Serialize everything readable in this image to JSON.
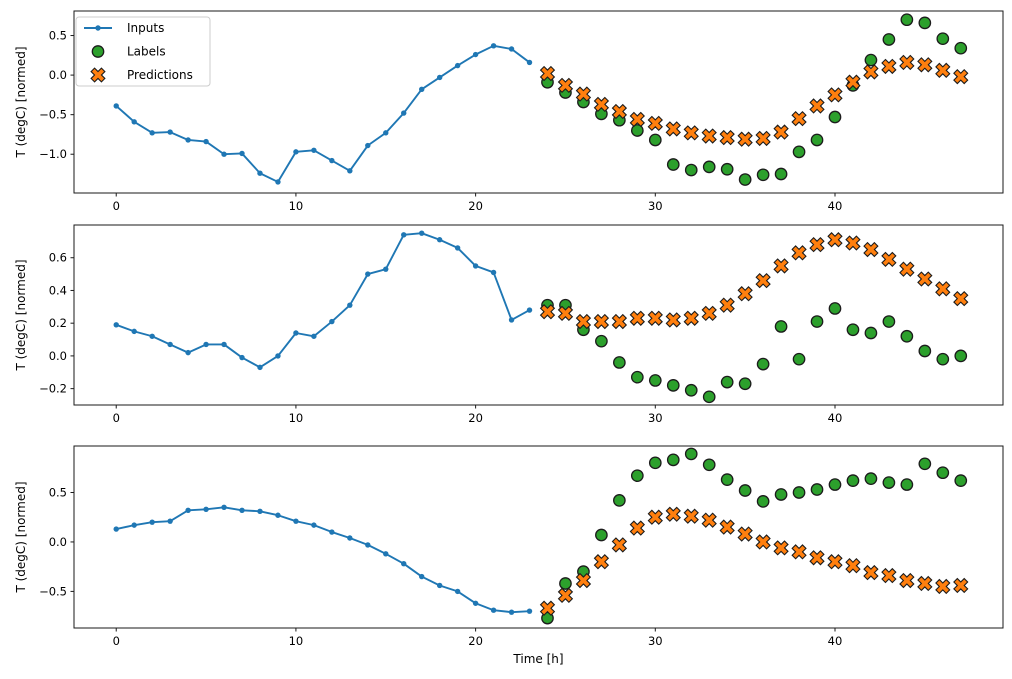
{
  "figure": {
    "background": "#ffffff",
    "colors": {
      "inputs": "#1f77b4",
      "labels": "#2ca02c",
      "predictions": "#ff7f0e",
      "marker_edge": "#1c1c1c",
      "spine": "#1a1a1a",
      "legend_border": "#cccccc"
    },
    "legend": {
      "entries": [
        "Inputs",
        "Labels",
        "Predictions"
      ]
    }
  },
  "chart_data": [
    {
      "type": "line",
      "title": "",
      "xlabel": "",
      "ylabel": "T (degC) [normed]",
      "xlim": [
        -2.35,
        49.35
      ],
      "ylim": [
        -1.49,
        0.81
      ],
      "grid": false,
      "legend": {
        "show": true,
        "position": "upper-left"
      },
      "xticks": {
        "values": [
          0,
          10,
          20,
          30,
          40
        ],
        "labels": [
          "0",
          "10",
          "20",
          "30",
          "40"
        ]
      },
      "yticks": {
        "values": [
          0.5,
          0.0,
          -0.5,
          -1.0
        ],
        "labels": [
          "0.5",
          "0.0",
          "−0.5",
          "−1.0"
        ]
      },
      "series": [
        {
          "name": "Inputs",
          "kind": "line",
          "marker": "dot",
          "color": "#1f77b4",
          "x": [
            0,
            1,
            2,
            3,
            4,
            5,
            6,
            7,
            8,
            9,
            10,
            11,
            12,
            13,
            14,
            15,
            16,
            17,
            18,
            19,
            20,
            21,
            22,
            23
          ],
          "values": [
            -0.39,
            -0.59,
            -0.73,
            -0.72,
            -0.82,
            -0.84,
            -1.0,
            -0.99,
            -1.24,
            -1.35,
            -0.97,
            -0.95,
            -1.08,
            -1.21,
            -0.89,
            -0.73,
            -0.48,
            -0.18,
            -0.03,
            0.12,
            0.26,
            0.37,
            0.33,
            0.16
          ]
        },
        {
          "name": "Labels",
          "kind": "scatter",
          "marker": "circle",
          "color": "#2ca02c",
          "x": [
            24,
            25,
            26,
            27,
            28,
            29,
            30,
            31,
            32,
            33,
            34,
            35,
            36,
            37,
            38,
            39,
            40,
            41,
            42,
            43,
            44,
            45,
            46,
            47
          ],
          "values": [
            -0.09,
            -0.22,
            -0.34,
            -0.49,
            -0.57,
            -0.7,
            -0.82,
            -1.13,
            -1.2,
            -1.16,
            -1.19,
            -1.32,
            -1.26,
            -1.25,
            -0.97,
            -0.82,
            -0.53,
            -0.13,
            0.19,
            0.45,
            0.7,
            0.66,
            0.46,
            0.34
          ]
        },
        {
          "name": "Predictions",
          "kind": "scatter",
          "marker": "X",
          "color": "#ff7f0e",
          "x": [
            24,
            25,
            26,
            27,
            28,
            29,
            30,
            31,
            32,
            33,
            34,
            35,
            36,
            37,
            38,
            39,
            40,
            41,
            42,
            43,
            44,
            45,
            46,
            47
          ],
          "values": [
            0.02,
            -0.13,
            -0.24,
            -0.37,
            -0.46,
            -0.56,
            -0.61,
            -0.68,
            -0.73,
            -0.77,
            -0.79,
            -0.81,
            -0.8,
            -0.72,
            -0.55,
            -0.39,
            -0.25,
            -0.09,
            0.04,
            0.11,
            0.16,
            0.13,
            0.06,
            -0.02
          ]
        }
      ]
    },
    {
      "type": "line",
      "title": "",
      "xlabel": "",
      "ylabel": "T (degC) [normed]",
      "xlim": [
        -2.35,
        49.35
      ],
      "ylim": [
        -0.3,
        0.8
      ],
      "grid": false,
      "legend": {
        "show": false
      },
      "xticks": {
        "values": [
          0,
          10,
          20,
          30,
          40
        ],
        "labels": [
          "0",
          "10",
          "20",
          "30",
          "40"
        ]
      },
      "yticks": {
        "values": [
          0.6,
          0.4,
          0.2,
          0.0,
          -0.2
        ],
        "labels": [
          "0.6",
          "0.4",
          "0.2",
          "0.0",
          "−0.2"
        ]
      },
      "series": [
        {
          "name": "Inputs",
          "kind": "line",
          "marker": "dot",
          "color": "#1f77b4",
          "x": [
            0,
            1,
            2,
            3,
            4,
            5,
            6,
            7,
            8,
            9,
            10,
            11,
            12,
            13,
            14,
            15,
            16,
            17,
            18,
            19,
            20,
            21,
            22,
            23
          ],
          "values": [
            0.19,
            0.15,
            0.12,
            0.07,
            0.02,
            0.07,
            0.07,
            -0.01,
            -0.07,
            0.0,
            0.14,
            0.12,
            0.21,
            0.31,
            0.5,
            0.53,
            0.74,
            0.75,
            0.71,
            0.66,
            0.55,
            0.51,
            0.22,
            0.28
          ]
        },
        {
          "name": "Labels",
          "kind": "scatter",
          "marker": "circle",
          "color": "#2ca02c",
          "x": [
            24,
            25,
            26,
            27,
            28,
            29,
            30,
            31,
            32,
            33,
            34,
            35,
            36,
            37,
            38,
            39,
            40,
            41,
            42,
            43,
            44,
            45,
            46,
            47
          ],
          "values": [
            0.31,
            0.31,
            0.16,
            0.09,
            -0.04,
            -0.13,
            -0.15,
            -0.18,
            -0.21,
            -0.25,
            -0.16,
            -0.17,
            -0.05,
            0.18,
            -0.02,
            0.21,
            0.29,
            0.16,
            0.14,
            0.21,
            0.12,
            0.03,
            -0.02,
            0.0
          ]
        },
        {
          "name": "Predictions",
          "kind": "scatter",
          "marker": "X",
          "color": "#ff7f0e",
          "x": [
            24,
            25,
            26,
            27,
            28,
            29,
            30,
            31,
            32,
            33,
            34,
            35,
            36,
            37,
            38,
            39,
            40,
            41,
            42,
            43,
            44,
            45,
            46,
            47
          ],
          "values": [
            0.27,
            0.26,
            0.21,
            0.21,
            0.21,
            0.23,
            0.23,
            0.22,
            0.23,
            0.26,
            0.31,
            0.38,
            0.46,
            0.55,
            0.63,
            0.68,
            0.71,
            0.69,
            0.65,
            0.59,
            0.53,
            0.47,
            0.41,
            0.35
          ]
        }
      ]
    },
    {
      "type": "line",
      "title": "",
      "xlabel": "Time [h]",
      "ylabel": "T (degC) [normed]",
      "xlim": [
        -2.35,
        49.35
      ],
      "ylim": [
        -0.87,
        0.97
      ],
      "grid": false,
      "legend": {
        "show": false
      },
      "xticks": {
        "values": [
          0,
          10,
          20,
          30,
          40
        ],
        "labels": [
          "0",
          "10",
          "20",
          "30",
          "40"
        ]
      },
      "yticks": {
        "values": [
          0.5,
          0.0,
          -0.5
        ],
        "labels": [
          "0.5",
          "0.0",
          "−0.5"
        ]
      },
      "series": [
        {
          "name": "Inputs",
          "kind": "line",
          "marker": "dot",
          "color": "#1f77b4",
          "x": [
            0,
            1,
            2,
            3,
            4,
            5,
            6,
            7,
            8,
            9,
            10,
            11,
            12,
            13,
            14,
            15,
            16,
            17,
            18,
            19,
            20,
            21,
            22,
            23
          ],
          "values": [
            0.13,
            0.17,
            0.2,
            0.21,
            0.32,
            0.33,
            0.35,
            0.32,
            0.31,
            0.27,
            0.21,
            0.17,
            0.1,
            0.04,
            -0.03,
            -0.12,
            -0.22,
            -0.35,
            -0.44,
            -0.5,
            -0.62,
            -0.69,
            -0.71,
            -0.7
          ]
        },
        {
          "name": "Labels",
          "kind": "scatter",
          "marker": "circle",
          "color": "#2ca02c",
          "x": [
            24,
            25,
            26,
            27,
            28,
            29,
            30,
            31,
            32,
            33,
            34,
            35,
            36,
            37,
            38,
            39,
            40,
            41,
            42,
            43,
            44,
            45,
            46,
            47
          ],
          "values": [
            -0.77,
            -0.42,
            -0.3,
            0.07,
            0.42,
            0.67,
            0.8,
            0.83,
            0.89,
            0.78,
            0.63,
            0.52,
            0.41,
            0.48,
            0.5,
            0.53,
            0.58,
            0.62,
            0.64,
            0.6,
            0.58,
            0.79,
            0.7,
            0.62
          ]
        },
        {
          "name": "Predictions",
          "kind": "scatter",
          "marker": "X",
          "color": "#ff7f0e",
          "x": [
            24,
            25,
            26,
            27,
            28,
            29,
            30,
            31,
            32,
            33,
            34,
            35,
            36,
            37,
            38,
            39,
            40,
            41,
            42,
            43,
            44,
            45,
            46,
            47
          ],
          "values": [
            -0.67,
            -0.54,
            -0.39,
            -0.2,
            -0.03,
            0.14,
            0.25,
            0.28,
            0.26,
            0.22,
            0.15,
            0.08,
            0.0,
            -0.06,
            -0.1,
            -0.16,
            -0.2,
            -0.24,
            -0.31,
            -0.34,
            -0.39,
            -0.42,
            -0.45,
            -0.44
          ]
        }
      ]
    }
  ]
}
